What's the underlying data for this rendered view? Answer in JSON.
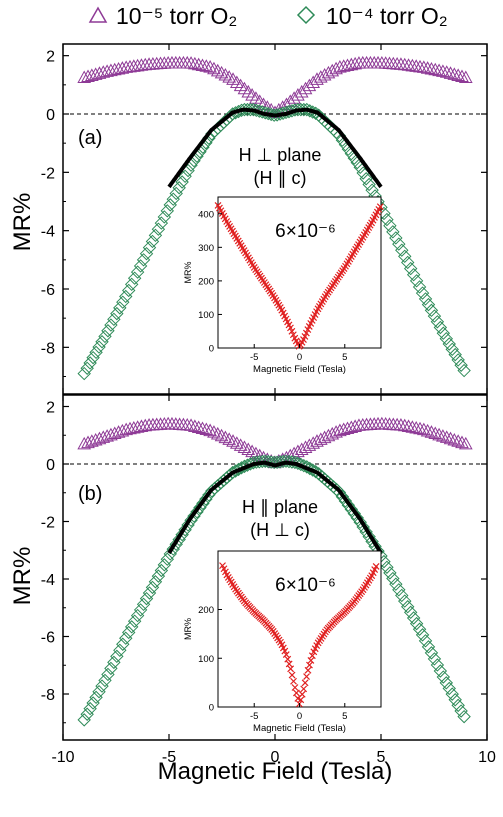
{
  "legend": {
    "items": [
      {
        "label": "10⁻⁵ torr O₂",
        "marker": "triangle",
        "color": "#8e3a96"
      },
      {
        "label": "10⁻⁴ torr O₂",
        "marker": "diamond",
        "color": "#2d8a57"
      }
    ],
    "placement": "top"
  },
  "colors": {
    "purple": "#8e3a96",
    "green": "#2d8a57",
    "fit": "#000000",
    "inset": "#e02020"
  },
  "chart_data": [
    {
      "type": "scatter",
      "panel_label": "(a)",
      "annotation_line1": "H ⊥ plane",
      "annotation_line2": "(H ∥ c)",
      "xlabel": "",
      "ylabel": "MR%",
      "xlim": [
        -10,
        10
      ],
      "ylim": [
        -9.6,
        2.4
      ],
      "yticks": [
        "2",
        "0",
        "-2",
        "-4",
        "-6",
        "-8"
      ],
      "xticks": [],
      "zero_line": "dashed",
      "series": [
        {
          "name": "10⁻⁵ torr O₂",
          "marker": "triangle",
          "x": [
            -9,
            -8,
            -7,
            -6,
            -5,
            -4,
            -3,
            -2,
            -1,
            -0.5,
            0,
            0.5,
            1,
            2,
            3,
            4,
            5,
            6,
            7,
            8,
            9
          ],
          "y": [
            1.25,
            1.45,
            1.6,
            1.7,
            1.75,
            1.75,
            1.6,
            1.2,
            0.6,
            0.3,
            0.05,
            0.3,
            0.6,
            1.2,
            1.6,
            1.75,
            1.75,
            1.7,
            1.6,
            1.45,
            1.25
          ]
        },
        {
          "name": "10⁻⁴ torr O₂",
          "marker": "diamond",
          "x": [
            -9,
            -8,
            -7,
            -6,
            -5,
            -4,
            -3,
            -2,
            -1.5,
            -1,
            -0.5,
            0,
            0.5,
            1,
            1.5,
            2,
            3,
            4,
            5,
            6,
            7,
            8,
            9
          ],
          "y": [
            -8.9,
            -7.6,
            -6.2,
            -4.7,
            -3.2,
            -1.8,
            -0.7,
            0.0,
            0.15,
            0.15,
            0.05,
            -0.05,
            0.05,
            0.15,
            0.15,
            0.0,
            -0.7,
            -1.8,
            -3.2,
            -4.7,
            -6.2,
            -7.6,
            -8.9
          ]
        },
        {
          "name": "",
          "marker": "fit-line",
          "x": [
            -5,
            -4,
            -3,
            -2,
            -1.5,
            -1,
            -0.5,
            0,
            0.5,
            1,
            1.5,
            2,
            3,
            4,
            5
          ],
          "y": [
            -2.5,
            -1.5,
            -0.55,
            0.05,
            0.15,
            0.12,
            0.0,
            -0.05,
            0.0,
            0.12,
            0.15,
            0.05,
            -0.55,
            -1.5,
            -2.5
          ]
        }
      ],
      "inset": {
        "type": "scatter",
        "annotation": "6×10⁻⁶",
        "xlabel": "Magnetic Field (Tesla)",
        "ylabel": "MR%",
        "xlim": [
          -9,
          9
        ],
        "ylim": [
          0,
          450
        ],
        "xticks": [
          "-5",
          "0",
          "5"
        ],
        "yticks": [
          "0",
          "100",
          "200",
          "300",
          "400"
        ],
        "x": [
          -9,
          -8,
          -7,
          -6,
          -5,
          -4,
          -3,
          -2,
          -1,
          -0.5,
          0,
          0.5,
          1,
          2,
          3,
          4,
          5,
          6,
          7,
          8,
          9
        ],
        "y": [
          425,
          375,
          330,
          285,
          240,
          200,
          160,
          115,
          60,
          28,
          3,
          28,
          60,
          115,
          160,
          200,
          240,
          285,
          330,
          375,
          425
        ]
      }
    },
    {
      "type": "scatter",
      "panel_label": "(b)",
      "annotation_line1": "H ∥ plane",
      "annotation_line2": "(H ⊥ c)",
      "xlabel": "Magnetic Field (Tesla)",
      "ylabel": "MR%",
      "xlim": [
        -10,
        10
      ],
      "ylim": [
        -9.6,
        2.4
      ],
      "yticks": [
        "2",
        "0",
        "-2",
        "-4",
        "-6",
        "-8"
      ],
      "xticks": [
        "-10",
        "-5",
        "0",
        "5",
        "10"
      ],
      "zero_line": "dashed",
      "series": [
        {
          "name": "10⁻⁵ torr O₂",
          "marker": "triangle",
          "x": [
            -9,
            -8,
            -7,
            -6,
            -5,
            -4,
            -3,
            -2,
            -1,
            -0.5,
            0,
            0.5,
            1,
            2,
            3,
            4,
            5,
            6,
            7,
            8,
            9
          ],
          "y": [
            0.7,
            0.95,
            1.2,
            1.35,
            1.4,
            1.35,
            1.15,
            0.8,
            0.4,
            0.2,
            0.05,
            0.2,
            0.4,
            0.8,
            1.15,
            1.35,
            1.4,
            1.35,
            1.2,
            0.95,
            0.7
          ]
        },
        {
          "name": "10⁻⁴ torr O₂",
          "marker": "diamond",
          "x": [
            -9,
            -8,
            -7,
            -6,
            -5,
            -4,
            -3,
            -2,
            -1.5,
            -1,
            -0.5,
            0,
            0.5,
            1,
            1.5,
            2,
            3,
            4,
            5,
            6,
            7,
            8,
            9
          ],
          "y": [
            -8.9,
            -7.5,
            -6.0,
            -4.6,
            -3.2,
            -2.0,
            -0.95,
            -0.3,
            -0.1,
            0.05,
            0.1,
            0.05,
            0.1,
            0.05,
            -0.1,
            -0.3,
            -0.95,
            -2.0,
            -3.2,
            -4.6,
            -6.0,
            -7.5,
            -8.9
          ]
        },
        {
          "name": "",
          "marker": "fit-line",
          "x": [
            -5,
            -4,
            -3,
            -2,
            -1,
            -0.5,
            0,
            0.5,
            1,
            2,
            3,
            4,
            5
          ],
          "y": [
            -3.1,
            -1.9,
            -0.9,
            -0.3,
            0.0,
            0.05,
            -0.05,
            0.05,
            0.0,
            -0.3,
            -0.9,
            -1.9,
            -3.1
          ]
        }
      ],
      "inset": {
        "type": "scatter",
        "annotation": "6×10⁻⁶",
        "xlabel": "Magnetic Field (Tesla)",
        "ylabel": "MR%",
        "xlim": [
          -9,
          9
        ],
        "ylim": [
          0,
          320
        ],
        "xticks": [
          "-5",
          "0",
          "5"
        ],
        "yticks": [
          "0",
          "100",
          "200"
        ],
        "x": [
          -8.5,
          -8,
          -7,
          -6,
          -5,
          -4,
          -3,
          -2,
          -1.5,
          -1,
          -0.5,
          0,
          0.5,
          1,
          1.5,
          2,
          3,
          4,
          5,
          6,
          7,
          8,
          8.5
        ],
        "y": [
          290,
          270,
          240,
          215,
          195,
          178,
          158,
          130,
          110,
          80,
          40,
          5,
          40,
          80,
          110,
          130,
          158,
          178,
          195,
          215,
          240,
          270,
          290
        ]
      }
    }
  ]
}
